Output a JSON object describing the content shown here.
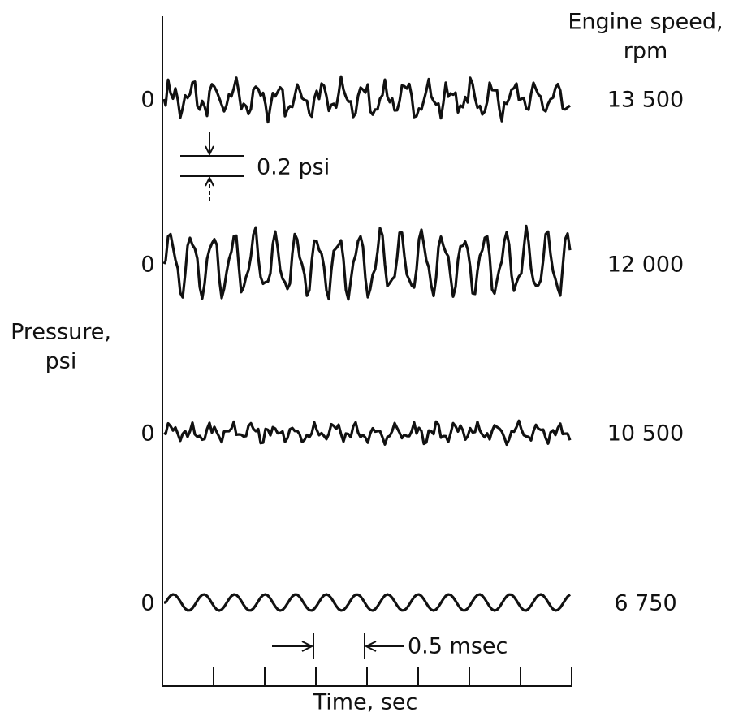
{
  "header": {
    "line1": "Engine speed,",
    "line2": "rpm"
  },
  "y_axis": {
    "line1": "Pressure,",
    "line2": "psi"
  },
  "x_axis": {
    "label": "Time, sec"
  },
  "scale_bars": {
    "pressure": "0.2 psi",
    "time": "0.5 msec"
  },
  "traces": [
    {
      "zero": "0",
      "speed": "13 500"
    },
    {
      "zero": "0",
      "speed": "12 000"
    },
    {
      "zero": "0",
      "speed": "10 500"
    },
    {
      "zero": "0",
      "speed": "6 750"
    }
  ]
}
